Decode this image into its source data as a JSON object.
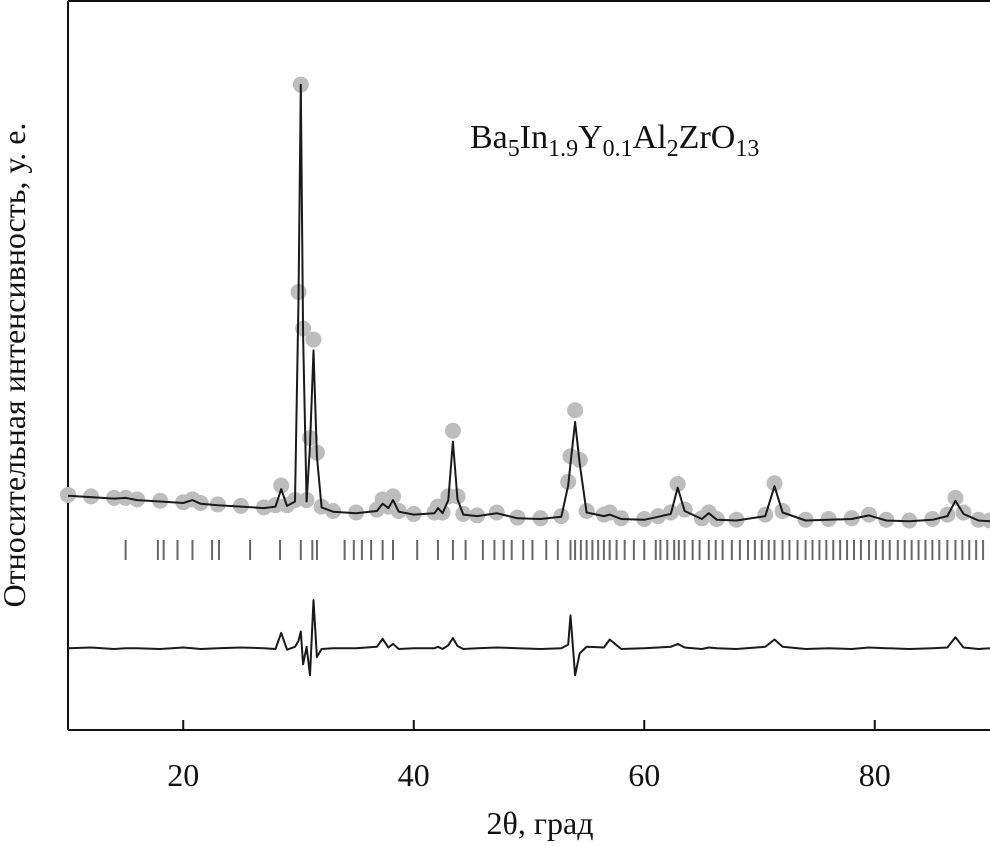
{
  "chart_data": {
    "type": "line",
    "annotation": [
      "Ba",
      "5",
      "In",
      "1.9",
      "Y",
      "0.1",
      "Al",
      "2",
      "ZrO",
      "13"
    ],
    "xlabel": "2θ, град",
    "ylabel": "Относительная интенсивность, у. е.",
    "xlim": [
      10,
      90
    ],
    "xticks": [
      20,
      40,
      60,
      80
    ],
    "ylim": [
      0,
      100
    ],
    "x": [
      10,
      12,
      14,
      15,
      16,
      18,
      20,
      20.8,
      21.5,
      23,
      25,
      27,
      28.0,
      28.5,
      29.0,
      29.7,
      30.0,
      30.2,
      30.4,
      30.7,
      31.0,
      31.3,
      31.6,
      32.0,
      33,
      35,
      36.8,
      37.3,
      37.8,
      38.2,
      38.7,
      40,
      41.8,
      42.1,
      42.5,
      43.0,
      43.4,
      43.8,
      44.3,
      45.5,
      47.2,
      49,
      51,
      52.8,
      53.4,
      53.6,
      54.0,
      54.4,
      55.0,
      56.5,
      57.0,
      58,
      60,
      61.2,
      62.3,
      62.9,
      63.5,
      65.0,
      65.6,
      66.3,
      68,
      70.5,
      71.3,
      72.0,
      74,
      76,
      78,
      79.5,
      81,
      83,
      85,
      86.3,
      87.0,
      87.7,
      89,
      90
    ],
    "series": [
      {
        "style": "markers",
        "color": "#bdbdbd",
        "values": [
          32.2,
          32.0,
          31.8,
          31.8,
          31.6,
          31.4,
          31.2,
          31.6,
          31.1,
          30.9,
          30.7,
          30.5,
          30.8,
          33.5,
          30.8,
          31.5,
          60,
          88.4,
          55,
          31.5,
          40,
          53.5,
          38,
          30.6,
          30.0,
          29.8,
          30.2,
          31.6,
          30.6,
          32.0,
          30.0,
          29.6,
          29.8,
          30.6,
          29.8,
          32,
          41.0,
          32,
          29.6,
          29.4,
          29.8,
          29.1,
          29.0,
          29.3,
          34,
          37.5,
          43.8,
          37,
          30,
          29.5,
          29.8,
          29.0,
          28.9,
          29.3,
          29.8,
          33.7,
          30.2,
          29.0,
          29.8,
          28.9,
          28.8,
          29.5,
          33.8,
          30.0,
          28.8,
          28.9,
          29.0,
          29.5,
          28.8,
          28.7,
          28.9,
          29.5,
          31.8,
          29.8,
          28.8,
          28.7
        ]
      },
      {
        "style": "line",
        "color": "#1a1a1a",
        "values": [
          32.1,
          31.9,
          31.7,
          31.8,
          31.5,
          31.3,
          31.1,
          31.5,
          31.0,
          30.8,
          30.6,
          30.4,
          30.6,
          33.0,
          30.7,
          31.3,
          59,
          88.4,
          54,
          31.3,
          39,
          52.0,
          37.5,
          30.5,
          29.9,
          29.7,
          30.0,
          31.0,
          30.4,
          31.5,
          29.9,
          29.5,
          29.7,
          30.4,
          29.7,
          31.5,
          39.5,
          31.6,
          29.5,
          29.3,
          29.7,
          29.0,
          28.9,
          29.2,
          33.5,
          36.5,
          42.2,
          36.5,
          29.8,
          29.3,
          29.5,
          28.9,
          28.8,
          29.2,
          29.6,
          33.2,
          30.0,
          28.9,
          29.7,
          28.8,
          28.7,
          29.3,
          33.4,
          29.8,
          28.7,
          28.8,
          28.9,
          29.4,
          28.7,
          28.6,
          28.8,
          29.3,
          31.4,
          29.6,
          28.7,
          28.6
        ]
      },
      {
        "style": "line",
        "color": "#1a1a1a",
        "values": [
          11.2,
          11.3,
          11.1,
          11.2,
          11.2,
          11.1,
          11.3,
          11.2,
          11.1,
          11.2,
          11.3,
          11.2,
          11.1,
          13.3,
          11.0,
          11.4,
          12.2,
          13.5,
          9.0,
          11.4,
          7.5,
          17.8,
          10.0,
          11.1,
          11.2,
          11.2,
          11.4,
          12.5,
          11.3,
          11.8,
          11.1,
          11.2,
          11.2,
          11.4,
          11.1,
          11.6,
          12.6,
          11.5,
          11.1,
          11.2,
          11.3,
          11.2,
          11.1,
          11.2,
          11.7,
          15.7,
          7.5,
          10.5,
          11.4,
          11.3,
          12.4,
          11.1,
          11.2,
          11.3,
          11.4,
          11.8,
          11.3,
          11.1,
          11.3,
          11.2,
          11.1,
          11.4,
          12.4,
          11.4,
          11.1,
          11.2,
          11.1,
          11.3,
          11.2,
          11.1,
          11.2,
          11.3,
          12.7,
          11.3,
          11.1,
          11.2
        ]
      }
    ],
    "reflections_color": "#666666",
    "reflections": [
      15.0,
      17.8,
      18.3,
      19.5,
      20.8,
      22.5,
      23.1,
      25.8,
      28.4,
      30.2,
      31.2,
      31.6,
      34.0,
      34.8,
      35.5,
      36.3,
      37.3,
      38.2,
      40.3,
      42.1,
      43.4,
      44.5,
      46.0,
      47.0,
      47.8,
      48.5,
      49.5,
      50.3,
      51.5,
      52.5,
      53.6,
      54.0,
      54.5,
      55.0,
      55.5,
      56.0,
      56.5,
      57.0,
      57.6,
      58.3,
      59.1,
      60.0,
      61.0,
      61.4,
      62.0,
      62.6,
      63.0,
      63.5,
      64.2,
      64.8,
      65.6,
      66.2,
      66.8,
      67.6,
      68.3,
      69.0,
      69.6,
      70.2,
      70.8,
      71.3,
      72.0,
      72.6,
      73.3,
      74.0,
      74.6,
      75.2,
      75.8,
      76.4,
      77.0,
      77.6,
      78.2,
      78.8,
      79.5,
      80.1,
      80.7,
      81.3,
      82.0,
      82.6,
      83.2,
      83.8,
      84.4,
      85.0,
      85.6,
      86.3,
      87.0,
      87.6,
      88.2,
      88.8,
      89.4
    ]
  }
}
